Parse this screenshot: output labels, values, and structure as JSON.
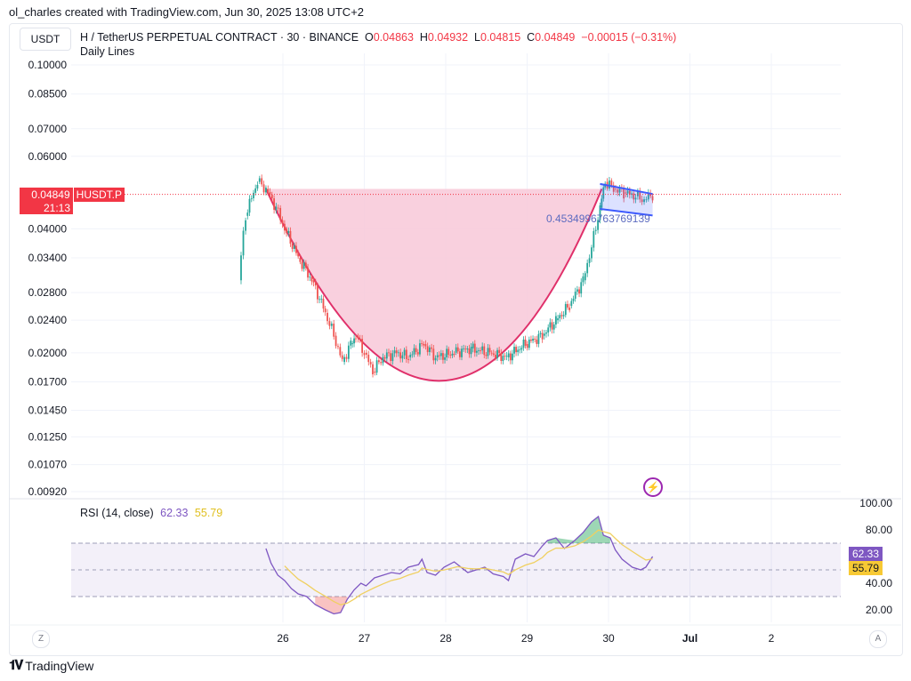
{
  "header": {
    "credit": "ol_charles created with TradingView.com, Jun 30, 2025 13:08 UTC+2",
    "currency": "USDT",
    "symbol": "H / TetherUS PERPETUAL CONTRACT · 30 · BINANCE",
    "ohlc": {
      "o_label": "O",
      "o": "0.04863",
      "h_label": "H",
      "h": "0.04932",
      "l_label": "L",
      "l": "0.04815",
      "c_label": "C",
      "c": "0.04849",
      "change": "−0.00015 (−0.31%)"
    },
    "indicator": "Daily Lines"
  },
  "price_badge": {
    "price": "0.04849",
    "ticker": "HUSDT.P",
    "countdown": "21:13"
  },
  "footer": {
    "brand": "TradingView",
    "z_button": "Z",
    "a_button": "A"
  },
  "colors": {
    "up": "#26a69a",
    "down": "#ef5350",
    "cup": "#e0306a",
    "cup_fill": "#f8c8d8",
    "channel": "#3d5afe",
    "rsi": "#7e57c2",
    "rsi_ma": "#f0d060",
    "price_line": "#f23645"
  },
  "chart_data": [
    {
      "type": "candlestick",
      "scale": "log",
      "price_axis_ticks": [
        "0.10000",
        "0.08500",
        "0.07000",
        "0.06000",
        "0.04000",
        "0.03400",
        "0.02800",
        "0.02400",
        "0.02000",
        "0.01700",
        "0.01450",
        "0.01250",
        "0.01070",
        "0.00920"
      ],
      "time_axis_ticks": [
        {
          "label": "26",
          "day": "06-26"
        },
        {
          "label": "27",
          "day": "06-27"
        },
        {
          "label": "28",
          "day": "06-28"
        },
        {
          "label": "29",
          "day": "06-29"
        },
        {
          "label": "30",
          "day": "06-30"
        },
        {
          "label": "Jul",
          "day": "07-01"
        },
        {
          "label": "2",
          "day": "07-02"
        }
      ],
      "grid": true,
      "last_price": 0.04849,
      "closes": [
        [
          "06-25 11:00",
          0.03
        ],
        [
          "06-25 13:00",
          0.043
        ],
        [
          "06-25 16:30",
          0.052
        ],
        [
          "06-25 19:00",
          0.05
        ],
        [
          "06-25 22:00",
          0.045
        ],
        [
          "06-26 00:30",
          0.04
        ],
        [
          "06-26 04:30",
          0.034
        ],
        [
          "06-26 08:30",
          0.03
        ],
        [
          "06-26 12:30",
          0.025
        ],
        [
          "06-26 15:00",
          0.022
        ],
        [
          "06-26 17:30",
          0.019
        ],
        [
          "06-26 20:00",
          0.021
        ],
        [
          "06-26 21:30",
          0.022
        ],
        [
          "06-27 00:00",
          0.02
        ],
        [
          "06-27 02:30",
          0.018
        ],
        [
          "06-27 05:30",
          0.0195
        ],
        [
          "06-27 09:30",
          0.02
        ],
        [
          "06-27 13:00",
          0.0195
        ],
        [
          "06-27 17:30",
          0.021
        ],
        [
          "06-27 21:00",
          0.0195
        ],
        [
          "06-28 02:30",
          0.02
        ],
        [
          "06-28 07:30",
          0.0205
        ],
        [
          "06-28 13:00",
          0.02
        ],
        [
          "06-28 18:00",
          0.0195
        ],
        [
          "06-28 23:30",
          0.021
        ],
        [
          "06-29 04:30",
          0.022
        ],
        [
          "06-29 08:30",
          0.024
        ],
        [
          "06-29 12:30",
          0.026
        ],
        [
          "06-29 16:30",
          0.03
        ],
        [
          "06-29 19:00",
          0.036
        ],
        [
          "06-29 21:30",
          0.045
        ],
        [
          "06-29 23:00",
          0.052
        ],
        [
          "06-30 01:30",
          0.05
        ],
        [
          "06-30 04:30",
          0.049
        ],
        [
          "06-30 08:00",
          0.048
        ],
        [
          "06-30 10:30",
          0.047
        ],
        [
          "06-30 13:00",
          0.0485
        ]
      ],
      "cup": {
        "left": [
          "06-25 19:00",
          0.05
        ],
        "bottom": [
          "06-27 22:00",
          0.0171
        ],
        "right": [
          "06-29 22:00",
          0.05
        ]
      },
      "channel": {
        "upper": [
          [
            "06-29 21:30",
            0.0514
          ],
          [
            "06-30 13:00",
            0.0486
          ]
        ],
        "lower": [
          [
            "06-29 21:30",
            0.0447
          ],
          [
            "06-30 13:00",
            0.0431
          ]
        ]
      },
      "annotation": "0.4534996763769139"
    },
    {
      "type": "line",
      "title": "RSI (14, close)",
      "rsi_value": "62.33",
      "ma_value": "55.79",
      "y_ticks": [
        "100.00",
        "80.00",
        "40.00",
        "20.00"
      ],
      "bands": {
        "upper": 70,
        "middle": 50,
        "lower": 30
      },
      "ylim": [
        0,
        100
      ],
      "series": [
        [
          "06-25 19:00",
          66
        ],
        [
          "06-25 20:30",
          55
        ],
        [
          "06-25 22:30",
          46
        ],
        [
          "06-26 00:30",
          42
        ],
        [
          "06-26 02:30",
          36
        ],
        [
          "06-26 04:30",
          32
        ],
        [
          "06-26 07:00",
          30
        ],
        [
          "06-26 09:30",
          24
        ],
        [
          "06-26 12:30",
          20
        ],
        [
          "06-26 15:00",
          17
        ],
        [
          "06-26 17:00",
          18
        ],
        [
          "06-26 19:00",
          28
        ],
        [
          "06-26 21:00",
          35
        ],
        [
          "06-26 23:00",
          40
        ],
        [
          "06-27 00:30",
          38
        ],
        [
          "06-27 03:00",
          44
        ],
        [
          "06-27 05:30",
          46
        ],
        [
          "06-27 08:00",
          48
        ],
        [
          "06-27 10:30",
          47
        ],
        [
          "06-27 13:00",
          52
        ],
        [
          "06-27 16:00",
          54
        ],
        [
          "06-27 17:00",
          58
        ],
        [
          "06-27 18:30",
          48
        ],
        [
          "06-27 21:00",
          46
        ],
        [
          "06-27 23:30",
          52
        ],
        [
          "06-28 02:30",
          56
        ],
        [
          "06-28 03:30",
          54
        ],
        [
          "06-28 06:30",
          48
        ],
        [
          "06-28 09:00",
          50
        ],
        [
          "06-28 11:30",
          52
        ],
        [
          "06-28 14:00",
          47
        ],
        [
          "06-28 17:00",
          45
        ],
        [
          "06-28 18:30",
          42
        ],
        [
          "06-28 20:30",
          58
        ],
        [
          "06-28 23:30",
          62
        ],
        [
          "06-29 02:00",
          60
        ],
        [
          "06-29 04:30",
          68
        ],
        [
          "06-29 06:00",
          72
        ],
        [
          "06-29 08:30",
          74
        ],
        [
          "06-29 11:00",
          66
        ],
        [
          "06-29 14:00",
          72
        ],
        [
          "06-29 16:30",
          78
        ],
        [
          "06-29 19:00",
          86
        ],
        [
          "06-29 21:00",
          90
        ],
        [
          "06-29 22:30",
          76
        ],
        [
          "06-30 00:30",
          74
        ],
        [
          "06-30 02:00",
          65
        ],
        [
          "06-30 04:00",
          58
        ],
        [
          "06-30 07:00",
          52
        ],
        [
          "06-30 09:30",
          50
        ],
        [
          "06-30 11:00",
          52
        ],
        [
          "06-30 13:00",
          60
        ]
      ]
    }
  ]
}
